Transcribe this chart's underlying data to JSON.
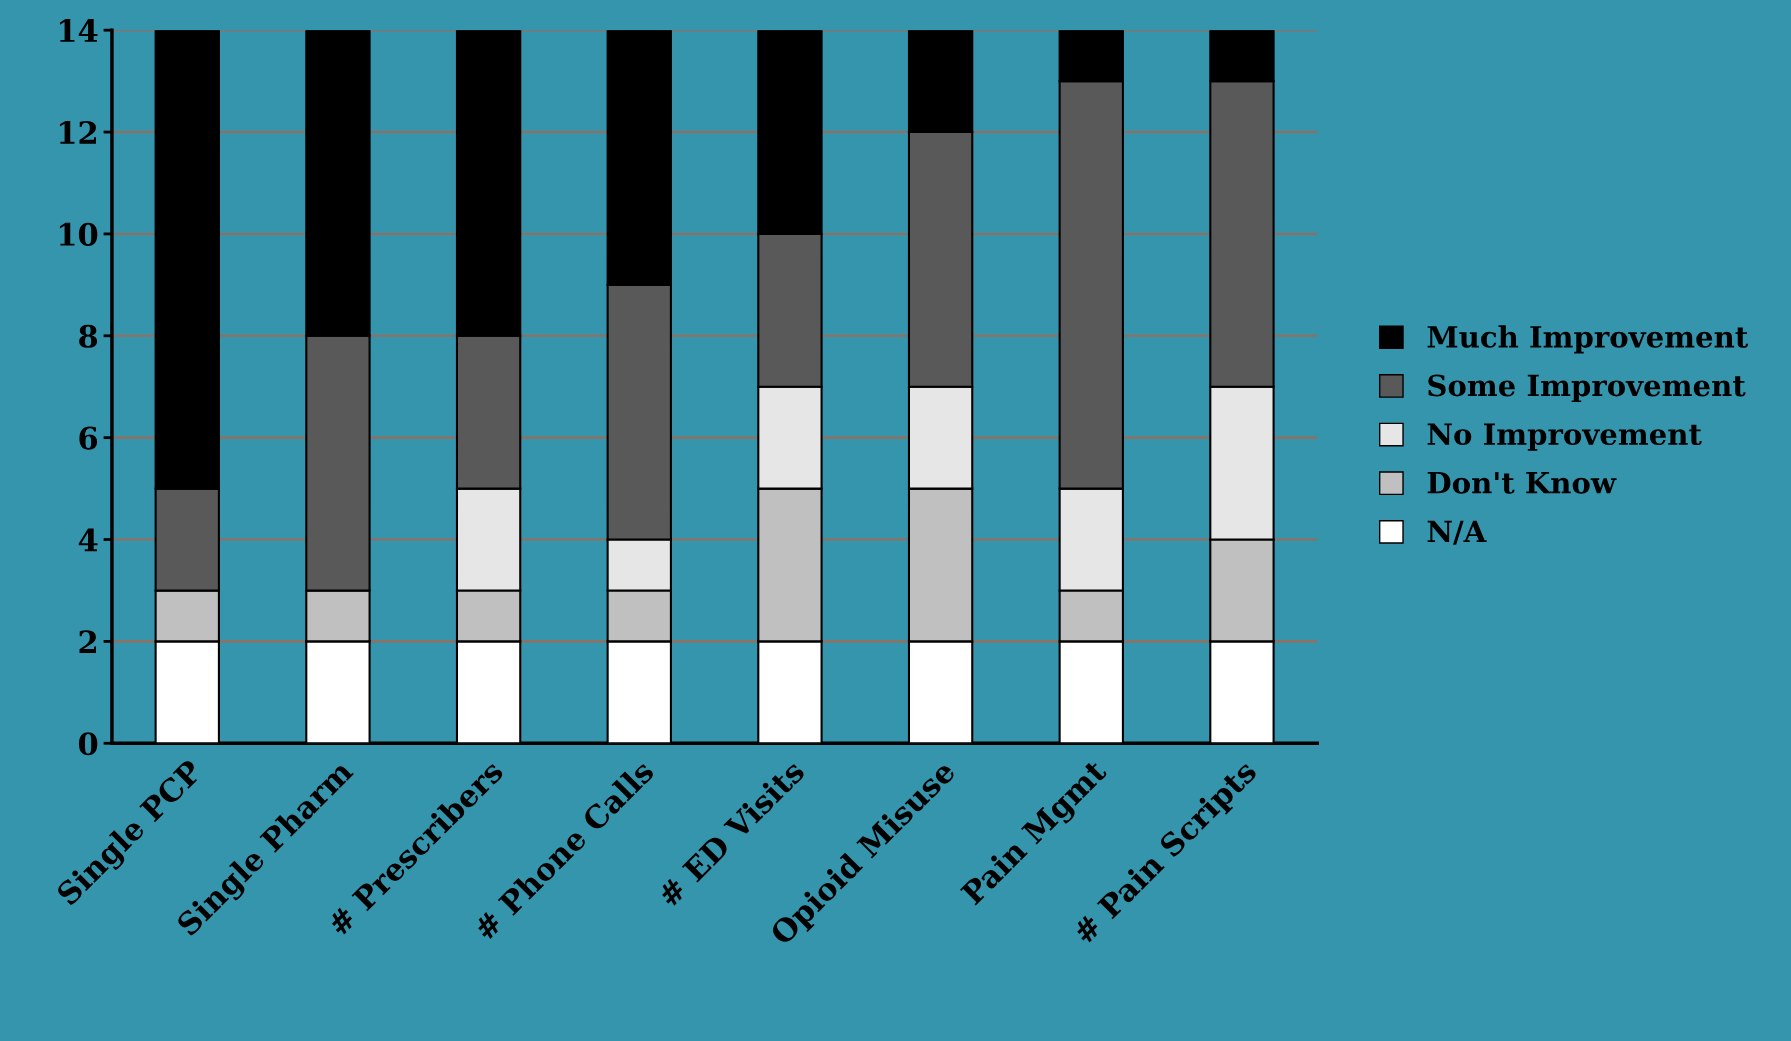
{
  "chart_data": {
    "type": "bar",
    "stacked": true,
    "categories": [
      "Single PCP",
      "Single Pharm",
      "# Prescribers",
      "# Phone Calls",
      "# ED Visits",
      "Opioid Misuse",
      "Pain Mgmt",
      "# Pain Scripts"
    ],
    "series": [
      {
        "name": "N/A",
        "color": "#ffffff",
        "values": [
          2,
          2,
          2,
          2,
          2,
          2,
          2,
          2
        ]
      },
      {
        "name": "Don't Know",
        "color": "#c0c0c0",
        "values": [
          1,
          1,
          1,
          1,
          3,
          3,
          1,
          2
        ]
      },
      {
        "name": "No Improvement",
        "color": "#e6e6e6",
        "values": [
          0,
          0,
          2,
          1,
          2,
          2,
          2,
          3
        ]
      },
      {
        "name": "Some Improvement",
        "color": "#595959",
        "values": [
          2,
          5,
          3,
          5,
          3,
          5,
          8,
          6
        ]
      },
      {
        "name": "Much Improvement",
        "color": "#000000",
        "values": [
          9,
          6,
          6,
          5,
          4,
          2,
          1,
          1
        ]
      }
    ],
    "ylim": [
      0,
      14
    ],
    "yticks": [
      0,
      2,
      4,
      6,
      8,
      10,
      12,
      14
    ],
    "grid": "y",
    "legend": "right"
  }
}
